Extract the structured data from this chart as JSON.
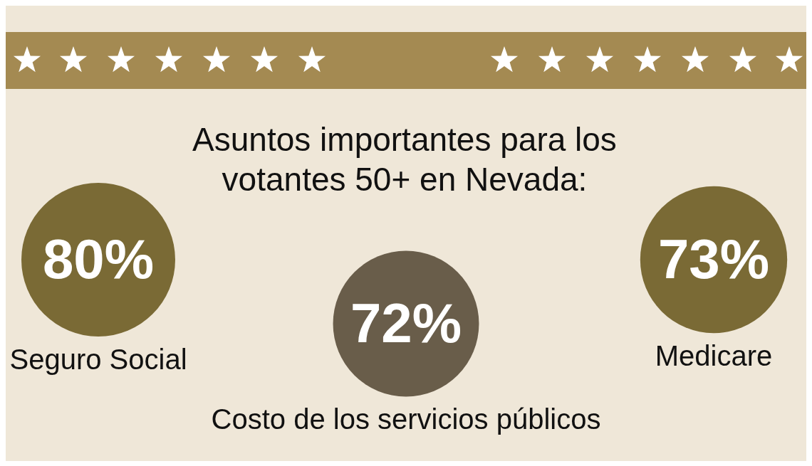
{
  "chart_data": {
    "type": "other",
    "title": "Asuntos importantes para los votantes 50+ en Nevada:",
    "categories": [
      "Seguro Social",
      "Costo de los servicios públicos",
      "Medicare"
    ],
    "values": [
      80,
      72,
      73
    ],
    "value_labels": [
      "80%",
      "72%",
      "73%"
    ],
    "colors": [
      "#7a6a35",
      "#695d4a",
      "#7a6a35"
    ]
  }
}
